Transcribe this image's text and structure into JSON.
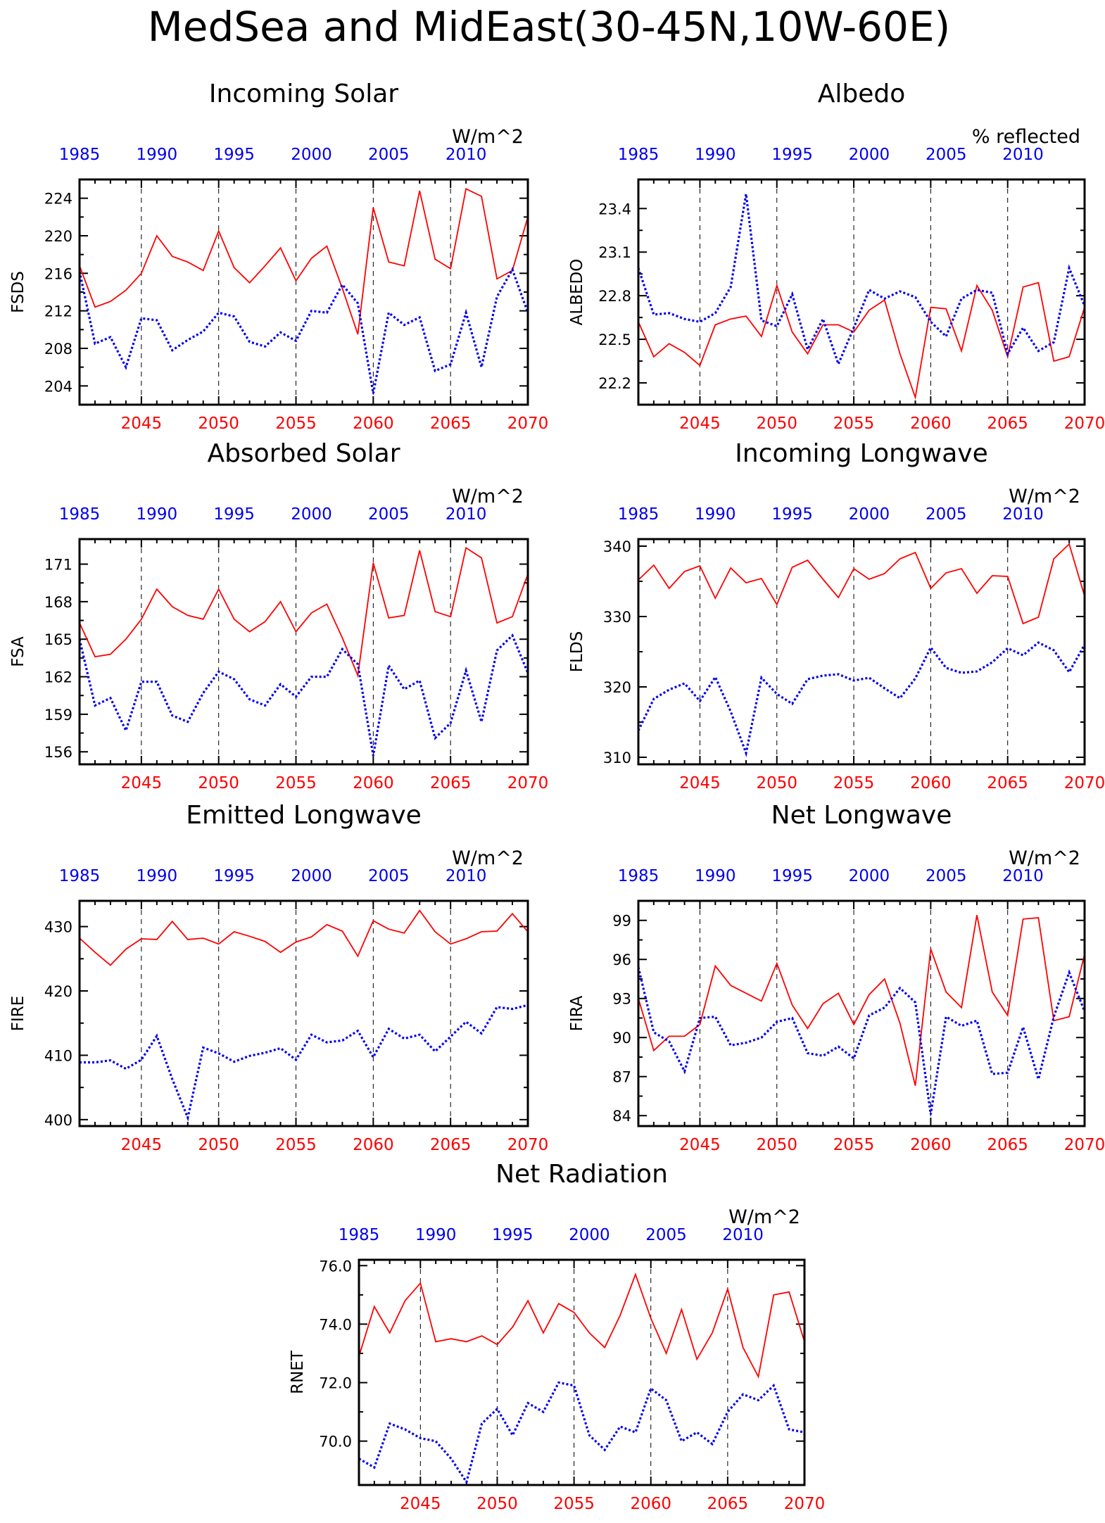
{
  "figure_title": "MedSea and MidEast(30-45N,10W-60E)",
  "colors": {
    "red": "#ff0000",
    "blue": "#0000ee",
    "black": "#000000"
  },
  "top_axis_labels": [
    "1985",
    "1990",
    "1995",
    "2000",
    "2005",
    "2010"
  ],
  "chart_data": [
    {
      "type": "line",
      "title": "Incoming Solar",
      "units": "W/m^2",
      "ylabel": "FSDS",
      "ylim": [
        202,
        226
      ],
      "yticks": [
        204,
        208,
        212,
        216,
        220,
        224
      ],
      "ytick_labels": [
        "204",
        "208",
        "212",
        "216",
        "220",
        "224"
      ],
      "xlim": [
        2041,
        2070
      ],
      "x_bottom_ticks": [
        "2045",
        "2050",
        "2055",
        "2060",
        "2065",
        "2070"
      ],
      "x": [
        2041,
        2042,
        2043,
        2044,
        2045,
        2046,
        2047,
        2048,
        2049,
        2050,
        2051,
        2052,
        2053,
        2054,
        2055,
        2056,
        2057,
        2058,
        2059,
        2060,
        2061,
        2062,
        2063,
        2064,
        2065,
        2066,
        2067,
        2068,
        2069,
        2070
      ],
      "series": [
        {
          "color": "red",
          "style": "solid",
          "values": [
            216.8,
            212.4,
            213.0,
            214.2,
            216.0,
            220.0,
            217.8,
            217.2,
            216.3,
            220.5,
            216.6,
            215.0,
            216.8,
            218.7,
            215.2,
            217.6,
            218.9,
            214.4,
            209.5,
            223.0,
            217.2,
            216.8,
            224.8,
            217.5,
            216.5,
            225.0,
            224.2,
            215.4,
            216.3,
            222.0
          ]
        },
        {
          "color": "blue",
          "style": "dotted",
          "values": [
            216.2,
            208.5,
            209.2,
            206.0,
            211.2,
            211.0,
            207.8,
            208.9,
            209.8,
            211.8,
            211.4,
            208.7,
            208.2,
            209.7,
            208.8,
            212.0,
            211.8,
            214.8,
            212.8,
            203.2,
            211.8,
            210.5,
            211.3,
            205.6,
            206.3,
            211.8,
            206.0,
            213.5,
            216.4,
            211.8
          ]
        }
      ]
    },
    {
      "type": "line",
      "title": "Albedo",
      "units": "% reflected",
      "ylabel": "ALBEDO",
      "ylim": [
        22.05,
        23.6
      ],
      "yticks": [
        22.2,
        22.5,
        22.8,
        23.1,
        23.4
      ],
      "ytick_labels": [
        "22.2",
        "22.5",
        "22.8",
        "23.1",
        "23.4"
      ],
      "xlim": [
        2041,
        2070
      ],
      "x_bottom_ticks": [
        "2045",
        "2050",
        "2055",
        "2060",
        "2065",
        "2070"
      ],
      "x": [
        2041,
        2042,
        2043,
        2044,
        2045,
        2046,
        2047,
        2048,
        2049,
        2050,
        2051,
        2052,
        2053,
        2054,
        2055,
        2056,
        2057,
        2058,
        2059,
        2060,
        2061,
        2062,
        2063,
        2064,
        2065,
        2066,
        2067,
        2068,
        2069,
        2070
      ],
      "series": [
        {
          "color": "red",
          "style": "solid",
          "values": [
            22.62,
            22.38,
            22.47,
            22.41,
            22.32,
            22.6,
            22.64,
            22.66,
            22.52,
            22.87,
            22.55,
            22.4,
            22.6,
            22.6,
            22.55,
            22.7,
            22.77,
            22.4,
            22.1,
            22.72,
            22.71,
            22.42,
            22.87,
            22.7,
            22.38,
            22.86,
            22.89,
            22.35,
            22.38,
            22.72
          ]
        },
        {
          "color": "blue",
          "style": "dotted",
          "values": [
            22.99,
            22.67,
            22.68,
            22.64,
            22.62,
            22.68,
            22.86,
            23.5,
            22.63,
            22.59,
            22.81,
            22.43,
            22.64,
            22.33,
            22.58,
            22.84,
            22.78,
            22.83,
            22.79,
            22.62,
            22.52,
            22.78,
            22.84,
            22.82,
            22.4,
            22.58,
            22.42,
            22.48,
            22.99,
            22.73
          ]
        }
      ]
    },
    {
      "type": "line",
      "title": "Absorbed Solar",
      "units": "W/m^2",
      "ylabel": "FSA",
      "ylim": [
        155,
        173
      ],
      "yticks": [
        156,
        159,
        162,
        165,
        168,
        171
      ],
      "ytick_labels": [
        "156",
        "159",
        "162",
        "165",
        "168",
        "171"
      ],
      "xlim": [
        2041,
        2070
      ],
      "x_bottom_ticks": [
        "2045",
        "2050",
        "2055",
        "2060",
        "2065",
        "2070"
      ],
      "x": [
        2041,
        2042,
        2043,
        2044,
        2045,
        2046,
        2047,
        2048,
        2049,
        2050,
        2051,
        2052,
        2053,
        2054,
        2055,
        2056,
        2057,
        2058,
        2059,
        2060,
        2061,
        2062,
        2063,
        2064,
        2065,
        2066,
        2067,
        2068,
        2069,
        2070
      ],
      "series": [
        {
          "color": "red",
          "style": "solid",
          "values": [
            166.3,
            163.6,
            163.8,
            165.0,
            166.6,
            169.0,
            167.6,
            166.9,
            166.6,
            169.0,
            166.6,
            165.6,
            166.4,
            168.0,
            165.6,
            167.1,
            167.8,
            165.1,
            162.1,
            171.1,
            166.7,
            166.9,
            172.1,
            167.2,
            166.8,
            172.3,
            171.5,
            166.3,
            166.8,
            170.2
          ]
        },
        {
          "color": "blue",
          "style": "dotted",
          "values": [
            165.0,
            159.7,
            160.3,
            157.7,
            161.6,
            161.6,
            158.9,
            158.4,
            160.7,
            162.4,
            161.8,
            160.2,
            159.7,
            161.4,
            160.4,
            162.0,
            162.0,
            164.2,
            163.0,
            155.7,
            162.9,
            161.0,
            161.7,
            157.1,
            158.3,
            162.5,
            158.4,
            164.1,
            165.3,
            162.3
          ]
        }
      ]
    },
    {
      "type": "line",
      "title": "Incoming Longwave",
      "units": "W/m^2",
      "ylabel": "FLDS",
      "ylim": [
        309,
        341
      ],
      "yticks": [
        310,
        320,
        330,
        340
      ],
      "ytick_labels": [
        "310",
        "320",
        "330",
        "340"
      ],
      "xlim": [
        2041,
        2070
      ],
      "x_bottom_ticks": [
        "2045",
        "2050",
        "2055",
        "2060",
        "2065",
        "2070"
      ],
      "x": [
        2041,
        2042,
        2043,
        2044,
        2045,
        2046,
        2047,
        2048,
        2049,
        2050,
        2051,
        2052,
        2053,
        2054,
        2055,
        2056,
        2057,
        2058,
        2059,
        2060,
        2061,
        2062,
        2063,
        2064,
        2065,
        2066,
        2067,
        2068,
        2069,
        2070
      ],
      "series": [
        {
          "color": "red",
          "style": "solid",
          "values": [
            335.2,
            337.3,
            334.0,
            336.4,
            337.2,
            332.6,
            336.9,
            334.8,
            335.4,
            331.7,
            337.0,
            338.0,
            335.3,
            332.7,
            336.8,
            335.3,
            336.1,
            338.2,
            339.1,
            334.0,
            336.2,
            336.8,
            333.3,
            335.8,
            335.7,
            329.0,
            329.9,
            338.2,
            340.3,
            332.9
          ]
        },
        {
          "color": "blue",
          "style": "dotted",
          "values": [
            313.8,
            318.3,
            319.6,
            320.5,
            318.0,
            321.4,
            316.5,
            310.6,
            321.3,
            319.0,
            317.6,
            321.1,
            321.6,
            321.8,
            320.9,
            321.3,
            319.8,
            318.4,
            321.2,
            325.6,
            322.7,
            322.0,
            322.2,
            323.5,
            325.5,
            324.5,
            326.3,
            325.2,
            322.1,
            326.0
          ]
        }
      ]
    },
    {
      "type": "line",
      "title": "Emitted Longwave",
      "units": "W/m^2",
      "ylabel": "FIRE",
      "ylim": [
        399,
        434
      ],
      "yticks": [
        400,
        410,
        420,
        430
      ],
      "ytick_labels": [
        "400",
        "410",
        "420",
        "430"
      ],
      "xlim": [
        2041,
        2070
      ],
      "x_bottom_ticks": [
        "2045",
        "2050",
        "2055",
        "2060",
        "2065",
        "2070"
      ],
      "x": [
        2041,
        2042,
        2043,
        2044,
        2045,
        2046,
        2047,
        2048,
        2049,
        2050,
        2051,
        2052,
        2053,
        2054,
        2055,
        2056,
        2057,
        2058,
        2059,
        2060,
        2061,
        2062,
        2063,
        2064,
        2065,
        2066,
        2067,
        2068,
        2069,
        2070
      ],
      "series": [
        {
          "color": "red",
          "style": "solid",
          "values": [
            428.2,
            426.0,
            424.0,
            426.5,
            428.1,
            428.0,
            430.8,
            428.0,
            428.2,
            427.3,
            429.2,
            428.5,
            427.7,
            426.0,
            427.6,
            428.4,
            430.3,
            429.3,
            425.4,
            430.9,
            429.6,
            429.0,
            432.5,
            429.2,
            427.3,
            428.1,
            429.2,
            429.3,
            432.0,
            429.2
          ]
        },
        {
          "color": "blue",
          "style": "dotted",
          "values": [
            408.9,
            408.9,
            409.2,
            407.9,
            409.3,
            413.0,
            406.3,
            400.3,
            411.2,
            410.3,
            409.0,
            409.9,
            410.4,
            411.1,
            409.3,
            413.2,
            412.0,
            412.3,
            413.8,
            409.7,
            414.1,
            412.6,
            413.2,
            410.6,
            412.9,
            415.2,
            413.4,
            417.5,
            417.2,
            417.8
          ]
        }
      ]
    },
    {
      "type": "line",
      "title": "Net Longwave",
      "units": "W/m^2",
      "ylabel": "FIRA",
      "ylim": [
        83.2,
        100.5
      ],
      "yticks": [
        84,
        87,
        90,
        93,
        96,
        99
      ],
      "ytick_labels": [
        "84",
        "87",
        "90",
        "93",
        "96",
        "99"
      ],
      "xlim": [
        2041,
        2070
      ],
      "x_bottom_ticks": [
        "2045",
        "2050",
        "2055",
        "2060",
        "2065",
        "2070"
      ],
      "x": [
        2041,
        2042,
        2043,
        2044,
        2045,
        2046,
        2047,
        2048,
        2049,
        2050,
        2051,
        2052,
        2053,
        2054,
        2055,
        2056,
        2057,
        2058,
        2059,
        2060,
        2061,
        2062,
        2063,
        2064,
        2065,
        2066,
        2067,
        2068,
        2069,
        2070
      ],
      "series": [
        {
          "color": "red",
          "style": "solid",
          "values": [
            93.0,
            89.0,
            90.1,
            90.1,
            91.0,
            95.5,
            94.0,
            93.4,
            92.8,
            95.7,
            92.5,
            90.7,
            92.6,
            93.4,
            91.0,
            93.3,
            94.5,
            91.1,
            86.3,
            96.8,
            93.5,
            92.3,
            99.4,
            93.5,
            91.7,
            99.1,
            99.2,
            91.3,
            91.6,
            96.4
          ]
        },
        {
          "color": "blue",
          "style": "dotted",
          "values": [
            95.4,
            90.4,
            89.7,
            87.4,
            91.5,
            91.6,
            89.4,
            89.6,
            90.0,
            91.2,
            91.5,
            88.8,
            88.6,
            89.3,
            88.4,
            91.7,
            92.3,
            93.8,
            92.7,
            84.1,
            91.6,
            90.9,
            91.3,
            87.2,
            87.3,
            90.8,
            86.8,
            91.6,
            95.0,
            92.0
          ]
        }
      ]
    },
    {
      "type": "line",
      "title": "Net Radiation",
      "units": "W/m^2",
      "ylabel": "RNET",
      "ylim": [
        68.5,
        76.2
      ],
      "yticks": [
        70.0,
        72.0,
        74.0,
        76.0
      ],
      "ytick_labels": [
        "70.0",
        "72.0",
        "74.0",
        "76.0"
      ],
      "xlim": [
        2041,
        2070
      ],
      "x_bottom_ticks": [
        "2045",
        "2050",
        "2055",
        "2060",
        "2065",
        "2070"
      ],
      "x": [
        2041,
        2042,
        2043,
        2044,
        2045,
        2046,
        2047,
        2048,
        2049,
        2050,
        2051,
        2052,
        2053,
        2054,
        2055,
        2056,
        2057,
        2058,
        2059,
        2060,
        2061,
        2062,
        2063,
        2064,
        2065,
        2066,
        2067,
        2068,
        2069,
        2070
      ],
      "series": [
        {
          "color": "red",
          "style": "solid",
          "values": [
            72.9,
            74.6,
            73.7,
            74.8,
            75.4,
            73.4,
            73.5,
            73.4,
            73.6,
            73.3,
            73.9,
            74.8,
            73.7,
            74.7,
            74.4,
            73.7,
            73.2,
            74.3,
            75.7,
            74.2,
            73.0,
            74.5,
            72.8,
            73.7,
            75.2,
            73.2,
            72.2,
            75.0,
            75.1,
            73.4
          ]
        },
        {
          "color": "blue",
          "style": "dotted",
          "values": [
            69.4,
            69.1,
            70.6,
            70.4,
            70.1,
            70.0,
            69.4,
            68.6,
            70.6,
            71.1,
            70.2,
            71.3,
            71.0,
            72.0,
            71.9,
            70.2,
            69.7,
            70.5,
            70.3,
            71.8,
            71.4,
            70.0,
            70.3,
            69.9,
            71.0,
            71.6,
            71.4,
            71.9,
            70.4,
            70.3
          ]
        }
      ]
    }
  ]
}
